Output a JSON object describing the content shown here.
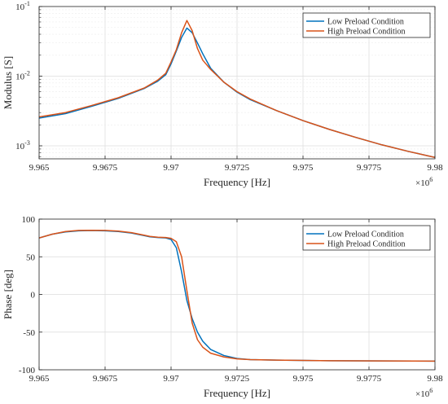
{
  "colors": {
    "low": "#0072BD",
    "high": "#D95319",
    "axis": "#262626",
    "grid": "#dcdcdc"
  },
  "chart_data": [
    {
      "type": "line",
      "yscale": "log",
      "xlabel": "Frequency [Hz]",
      "ylabel": "Modulus [S]",
      "xlim": [
        9.965,
        9.98
      ],
      "ylim": [
        0.00065,
        0.1
      ],
      "x_multiplier_label": "×10",
      "x_multiplier_exp": "6",
      "x_ticks": [
        "9.965",
        "9.9675",
        "9.97",
        "9.9725",
        "9.975",
        "9.9775",
        "9.98"
      ],
      "y_ticks": [
        {
          "value": 0.001,
          "base": "10",
          "exp": "-3"
        },
        {
          "value": 0.01,
          "base": "10",
          "exp": "-2"
        },
        {
          "value": 0.1,
          "base": "10",
          "exp": "-1"
        }
      ],
      "grid": true,
      "legend_position": "top-right",
      "series": [
        {
          "name": "Low Preload Condition",
          "color": "#0072BD",
          "points": [
            [
              9.965,
              0.0025
            ],
            [
              9.966,
              0.0029
            ],
            [
              9.967,
              0.0037
            ],
            [
              9.968,
              0.0048
            ],
            [
              9.969,
              0.0067
            ],
            [
              9.9695,
              0.0085
            ],
            [
              9.9698,
              0.0105
            ],
            [
              9.97,
              0.015
            ],
            [
              9.9702,
              0.023
            ],
            [
              9.9704,
              0.036
            ],
            [
              9.9706,
              0.049
            ],
            [
              9.9708,
              0.042
            ],
            [
              9.971,
              0.03
            ],
            [
              9.9712,
              0.021
            ],
            [
              9.9715,
              0.013
            ],
            [
              9.972,
              0.0082
            ],
            [
              9.9725,
              0.0059
            ],
            [
              9.973,
              0.0046
            ],
            [
              9.974,
              0.0032
            ],
            [
              9.975,
              0.0023
            ],
            [
              9.976,
              0.00172
            ],
            [
              9.977,
              0.00132
            ],
            [
              9.978,
              0.00103
            ],
            [
              9.979,
              0.00083
            ],
            [
              9.98,
              0.00068
            ]
          ]
        },
        {
          "name": "High Preload Condition",
          "color": "#D95319",
          "points": [
            [
              9.965,
              0.0026
            ],
            [
              9.966,
              0.003
            ],
            [
              9.967,
              0.0038
            ],
            [
              9.968,
              0.0049
            ],
            [
              9.969,
              0.0068
            ],
            [
              9.9695,
              0.0088
            ],
            [
              9.9698,
              0.011
            ],
            [
              9.97,
              0.016
            ],
            [
              9.9702,
              0.024
            ],
            [
              9.9704,
              0.042
            ],
            [
              9.9706,
              0.063
            ],
            [
              9.9708,
              0.045
            ],
            [
              9.971,
              0.025
            ],
            [
              9.9712,
              0.017
            ],
            [
              9.9715,
              0.0125
            ],
            [
              9.972,
              0.0082
            ],
            [
              9.9725,
              0.006
            ],
            [
              9.973,
              0.0047
            ],
            [
              9.974,
              0.0032
            ],
            [
              9.975,
              0.0023
            ],
            [
              9.976,
              0.00172
            ],
            [
              9.977,
              0.00132
            ],
            [
              9.978,
              0.00103
            ],
            [
              9.979,
              0.00083
            ],
            [
              9.98,
              0.00068
            ]
          ]
        }
      ]
    },
    {
      "type": "line",
      "yscale": "linear",
      "xlabel": "Frequency [Hz]",
      "ylabel": "Phase [deg]",
      "xlim": [
        9.965,
        9.98
      ],
      "ylim": [
        -100,
        100
      ],
      "x_multiplier_label": "×10",
      "x_multiplier_exp": "6",
      "x_ticks": [
        "9.965",
        "9.9675",
        "9.97",
        "9.9725",
        "9.975",
        "9.9775",
        "9.98"
      ],
      "y_ticks": [
        "-100",
        "-50",
        "0",
        "50",
        "100"
      ],
      "grid": true,
      "legend_position": "top-right",
      "series": [
        {
          "name": "Low Preload Condition",
          "color": "#0072BD",
          "points": [
            [
              9.965,
              75
            ],
            [
              9.9655,
              80
            ],
            [
              9.966,
              83
            ],
            [
              9.9665,
              84.5
            ],
            [
              9.967,
              84.8
            ],
            [
              9.9675,
              84.5
            ],
            [
              9.968,
              83.5
            ],
            [
              9.9685,
              81.5
            ],
            [
              9.969,
              78
            ],
            [
              9.9692,
              76.5
            ],
            [
              9.9695,
              75.5
            ],
            [
              9.9698,
              75
            ],
            [
              9.97,
              73
            ],
            [
              9.9702,
              62
            ],
            [
              9.9704,
              30
            ],
            [
              9.9706,
              -8
            ],
            [
              9.9708,
              -32
            ],
            [
              9.971,
              -50
            ],
            [
              9.9712,
              -62
            ],
            [
              9.9715,
              -73
            ],
            [
              9.972,
              -81
            ],
            [
              9.9725,
              -85
            ],
            [
              9.973,
              -86.5
            ],
            [
              9.974,
              -87.2
            ],
            [
              9.976,
              -88
            ],
            [
              9.978,
              -88.3
            ],
            [
              9.98,
              -88.5
            ]
          ]
        },
        {
          "name": "High Preload Condition",
          "color": "#D95319",
          "points": [
            [
              9.965,
              75
            ],
            [
              9.9655,
              80
            ],
            [
              9.966,
              83.5
            ],
            [
              9.9665,
              85
            ],
            [
              9.967,
              85.2
            ],
            [
              9.9675,
              85
            ],
            [
              9.968,
              84
            ],
            [
              9.9685,
              82
            ],
            [
              9.969,
              78.5
            ],
            [
              9.9692,
              77
            ],
            [
              9.9695,
              76
            ],
            [
              9.9698,
              75.5
            ],
            [
              9.97,
              74.5
            ],
            [
              9.9702,
              70
            ],
            [
              9.9704,
              50
            ],
            [
              9.9706,
              5
            ],
            [
              9.9708,
              -38
            ],
            [
              9.971,
              -60
            ],
            [
              9.9712,
              -70
            ],
            [
              9.9715,
              -78
            ],
            [
              9.972,
              -83
            ],
            [
              9.9725,
              -85.5
            ],
            [
              9.973,
              -86.5
            ],
            [
              9.974,
              -87.2
            ],
            [
              9.976,
              -88
            ],
            [
              9.978,
              -88.3
            ],
            [
              9.98,
              -88.5
            ]
          ]
        }
      ]
    }
  ]
}
